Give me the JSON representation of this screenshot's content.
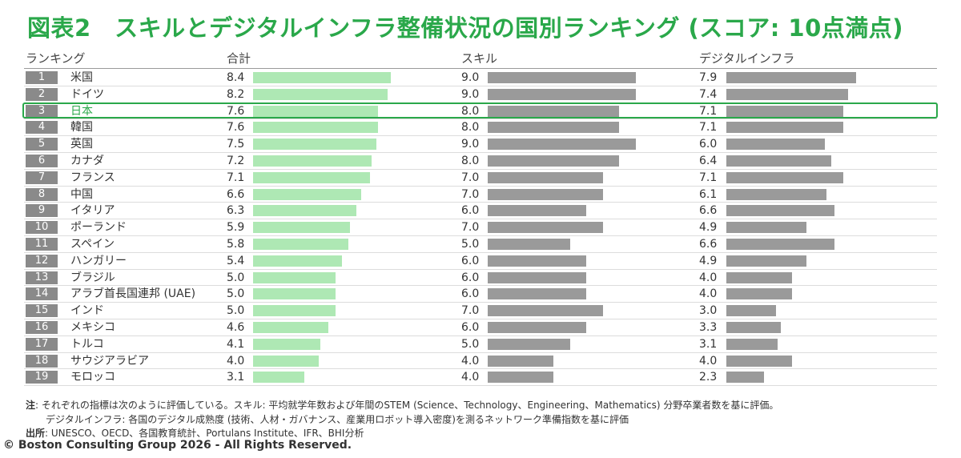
{
  "title": "図表2　スキルとデジタルインフラ整備状況の国別ランキング (スコア: 10点満点)",
  "headers": {
    "rank": "ランキング",
    "total": "合計",
    "skill": "スキル",
    "digital": "デジタルインフラ"
  },
  "highlight_rank": 3,
  "colors": {
    "accent": "#2aa84a",
    "total_bar": "#aee8b4",
    "gray_bar": "#9a9a9a",
    "rank_badge": "#8a8a8a"
  },
  "chart_data": {
    "type": "bar",
    "title": "図表2　スキルとデジタルインフラ整備状況の国別ランキング (スコア: 10点満点)",
    "categories": [
      "米国",
      "ドイツ",
      "日本",
      "韓国",
      "英国",
      "カナダ",
      "フランス",
      "中国",
      "イタリア",
      "ポーランド",
      "スペイン",
      "ハンガリー",
      "ブラジル",
      "アラブ首長国連邦 (UAE)",
      "インド",
      "メキシコ",
      "トルコ",
      "サウジアラビア",
      "モロッコ"
    ],
    "ranks": [
      "1",
      "2",
      "3",
      "4",
      "5",
      "6",
      "7",
      "8",
      "9",
      "10",
      "11",
      "12",
      "13",
      "14",
      "15",
      "16",
      "17",
      "18",
      "19"
    ],
    "xlim": [
      0,
      10
    ],
    "series": [
      {
        "name": "合計",
        "values": [
          8.4,
          8.2,
          7.6,
          7.6,
          7.5,
          7.2,
          7.1,
          6.6,
          6.3,
          5.9,
          5.8,
          5.4,
          5.0,
          5.0,
          5.0,
          4.6,
          4.1,
          4.0,
          3.1
        ]
      },
      {
        "name": "スキル",
        "values": [
          9.0,
          9.0,
          8.0,
          8.0,
          9.0,
          8.0,
          7.0,
          7.0,
          6.0,
          7.0,
          5.0,
          6.0,
          6.0,
          6.0,
          7.0,
          6.0,
          5.0,
          4.0,
          4.0
        ]
      },
      {
        "name": "デジタルインフラ",
        "values": [
          7.9,
          7.4,
          7.1,
          7.1,
          6.0,
          6.4,
          7.1,
          6.1,
          6.6,
          4.9,
          6.6,
          4.9,
          4.0,
          4.0,
          3.0,
          3.3,
          3.1,
          4.0,
          2.3
        ]
      }
    ]
  },
  "notes": {
    "note_label": "注",
    "note_line1": ": それぞれの指標は次のように評価している。スキル: 平均就学年数および年間のSTEM (Science、Technology、Engineering、Mathematics) 分野卒業者数を基に評価。",
    "note_line2": "デジタルインフラ: 各国のデジタル成熟度 (技術、人材・ガバナンス、産業用ロボット導入密度)を測るネットワーク準備指数を基に評価",
    "source_label": "出所",
    "source_text": ": UNESCO、OECD、各国教育統計、Portulans Institute、IFR、BHI分析"
  },
  "copyright": "© Boston Consulting Group 2026 - All Rights Reserved."
}
